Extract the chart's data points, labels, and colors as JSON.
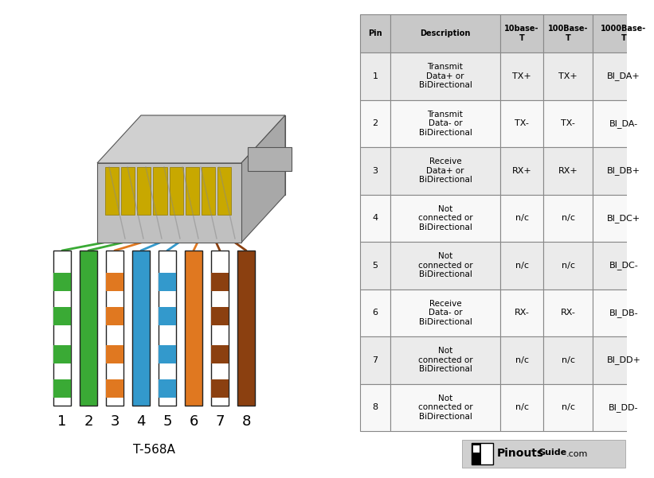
{
  "bg_color": "#ffffff",
  "col_headers": [
    "Pin",
    "Description",
    "10base-\nT",
    "100Base-\nT",
    "1000Base-\nT"
  ],
  "rows": [
    {
      "pin": "1",
      "desc": "Transmit\nData+ or\nBiDirectional",
      "t10": "TX+",
      "t100": "TX+",
      "t1000": "BI_DA+"
    },
    {
      "pin": "2",
      "desc": "Transmit\nData- or\nBiDirectional",
      "t10": "TX-",
      "t100": "TX-",
      "t1000": "BI_DA-"
    },
    {
      "pin": "3",
      "desc": "Receive\nData+ or\nBiDirectional",
      "t10": "RX+",
      "t100": "RX+",
      "t1000": "BI_DB+"
    },
    {
      "pin": "4",
      "desc": "Not\nconnected or\nBiDirectional",
      "t10": "n/c",
      "t100": "n/c",
      "t1000": "BI_DC+"
    },
    {
      "pin": "5",
      "desc": "Not\nconnected or\nBiDirectional",
      "t10": "n/c",
      "t100": "n/c",
      "t1000": "BI_DC-"
    },
    {
      "pin": "6",
      "desc": "Receive\nData- or\nBiDirectional",
      "t10": "RX-",
      "t100": "RX-",
      "t1000": "BI_DB-"
    },
    {
      "pin": "7",
      "desc": "Not\nconnected or\nBiDirectional",
      "t10": "n/c",
      "t100": "n/c",
      "t1000": "BI_DD+"
    },
    {
      "pin": "8",
      "desc": "Not\nconnected or\nBiDirectional",
      "t10": "n/c",
      "t100": "n/c",
      "t1000": "BI_DD-"
    }
  ],
  "header_bg": "#c8c8c8",
  "row_bg_odd": "#ebebeb",
  "row_bg_even": "#f8f8f8",
  "grid_color": "#888888",
  "wires": [
    {
      "base": "#ffffff",
      "stripe": "#3aaa35"
    },
    {
      "base": "#3aaa35",
      "stripe": null
    },
    {
      "base": "#ffffff",
      "stripe": "#e07820"
    },
    {
      "base": "#3399cc",
      "stripe": null
    },
    {
      "base": "#ffffff",
      "stripe": "#3399cc"
    },
    {
      "base": "#e07820",
      "stripe": null
    },
    {
      "base": "#ffffff",
      "stripe": "#8B4010"
    },
    {
      "base": "#8B4010",
      "stripe": null
    }
  ],
  "wire_line_colors": [
    "#3aaa35",
    "#3aaa35",
    "#e07820",
    "#3399cc",
    "#3399cc",
    "#e07820",
    "#8B4010",
    "#8B4010"
  ],
  "standard_label": "T-568A",
  "watermark_text": "PinoutsGuide",
  "watermark_com": ".com"
}
